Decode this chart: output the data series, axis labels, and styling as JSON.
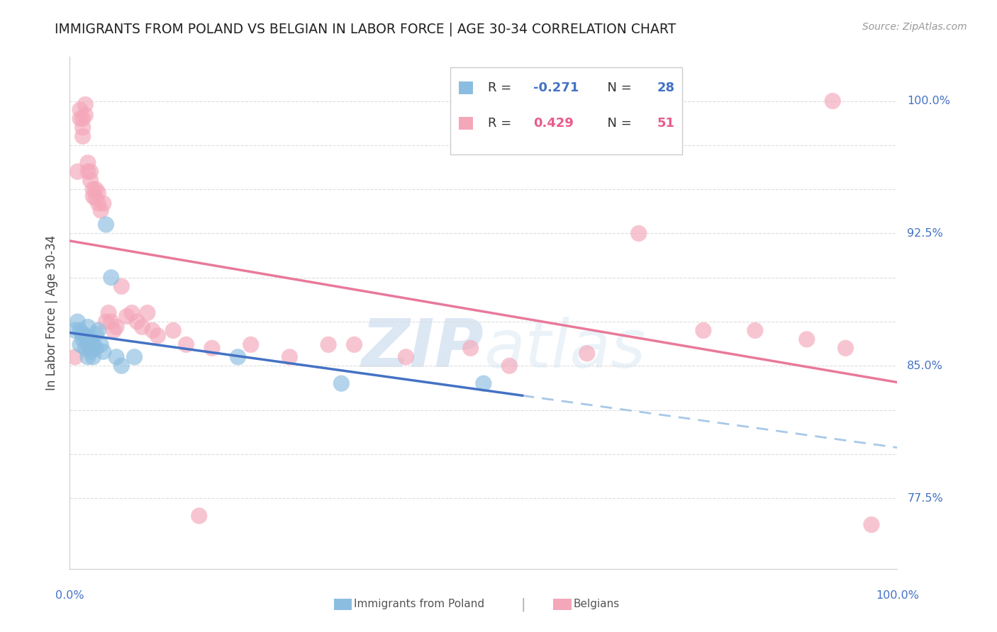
{
  "title": "IMMIGRANTS FROM POLAND VS BELGIAN IN LABOR FORCE | AGE 30-34 CORRELATION CHART",
  "source": "Source: ZipAtlas.com",
  "ylabel": "In Labor Force | Age 30-34",
  "xlim": [
    0.0,
    0.32
  ],
  "ylim": [
    0.735,
    1.025
  ],
  "right_labels": {
    "1.000": "100.0%",
    "0.925": "92.5%",
    "0.850": "85.0%",
    "0.775": "77.5%"
  },
  "legend_r_poland": "-0.271",
  "legend_n_poland": "28",
  "legend_r_belgians": "0.429",
  "legend_n_belgians": "51",
  "poland_color": "#8bbde0",
  "belgians_color": "#f4a7b9",
  "trend_poland_solid_color": "#4472c4",
  "trend_belgians_color": "#e8799a",
  "dashed_line_color": "#a8c8e8",
  "poland_scatter_x": [
    0.002,
    0.003,
    0.004,
    0.004,
    0.005,
    0.005,
    0.006,
    0.006,
    0.007,
    0.007,
    0.007,
    0.008,
    0.008,
    0.009,
    0.009,
    0.01,
    0.01,
    0.011,
    0.012,
    0.013,
    0.014,
    0.016,
    0.018,
    0.02,
    0.025,
    0.065,
    0.105,
    0.16
  ],
  "poland_scatter_y": [
    0.87,
    0.875,
    0.862,
    0.87,
    0.865,
    0.868,
    0.86,
    0.867,
    0.855,
    0.862,
    0.872,
    0.858,
    0.865,
    0.855,
    0.862,
    0.86,
    0.868,
    0.87,
    0.862,
    0.858,
    0.93,
    0.9,
    0.855,
    0.85,
    0.855,
    0.855,
    0.84,
    0.84
  ],
  "belgians_scatter_x": [
    0.002,
    0.003,
    0.004,
    0.004,
    0.005,
    0.005,
    0.005,
    0.006,
    0.006,
    0.007,
    0.007,
    0.008,
    0.008,
    0.009,
    0.009,
    0.01,
    0.01,
    0.011,
    0.011,
    0.012,
    0.013,
    0.014,
    0.015,
    0.016,
    0.017,
    0.018,
    0.02,
    0.022,
    0.024,
    0.026,
    0.028,
    0.03,
    0.032,
    0.034,
    0.04,
    0.045,
    0.055,
    0.07,
    0.085,
    0.1,
    0.11,
    0.13,
    0.155,
    0.17,
    0.2,
    0.22,
    0.245,
    0.265,
    0.285,
    0.3,
    0.31
  ],
  "belgians_scatter_y": [
    0.855,
    0.96,
    0.99,
    0.995,
    0.98,
    0.985,
    0.99,
    0.998,
    0.992,
    0.965,
    0.96,
    0.955,
    0.96,
    0.95,
    0.946,
    0.95,
    0.945,
    0.942,
    0.948,
    0.938,
    0.942,
    0.875,
    0.88,
    0.875,
    0.87,
    0.872,
    0.895,
    0.878,
    0.88,
    0.875,
    0.872,
    0.88,
    0.87,
    0.867,
    0.87,
    0.862,
    0.86,
    0.862,
    0.855,
    0.862,
    0.862,
    0.855,
    0.86,
    0.85,
    0.857,
    0.925,
    0.87,
    0.87,
    0.865,
    0.86,
    0.76
  ],
  "belgians_high_x": [
    0.295
  ],
  "belgians_high_y": [
    1.0
  ],
  "belgians_low_x": [
    0.05
  ],
  "belgians_low_y": [
    0.765
  ],
  "watermark_zip": "ZIP",
  "watermark_atlas": "atlas",
  "background_color": "#ffffff",
  "grid_color": "#dddddd",
  "trend_poland_x_end": 0.175,
  "trend_poland_dashed_start": 0.175,
  "trend_poland_dashed_end": 0.32
}
